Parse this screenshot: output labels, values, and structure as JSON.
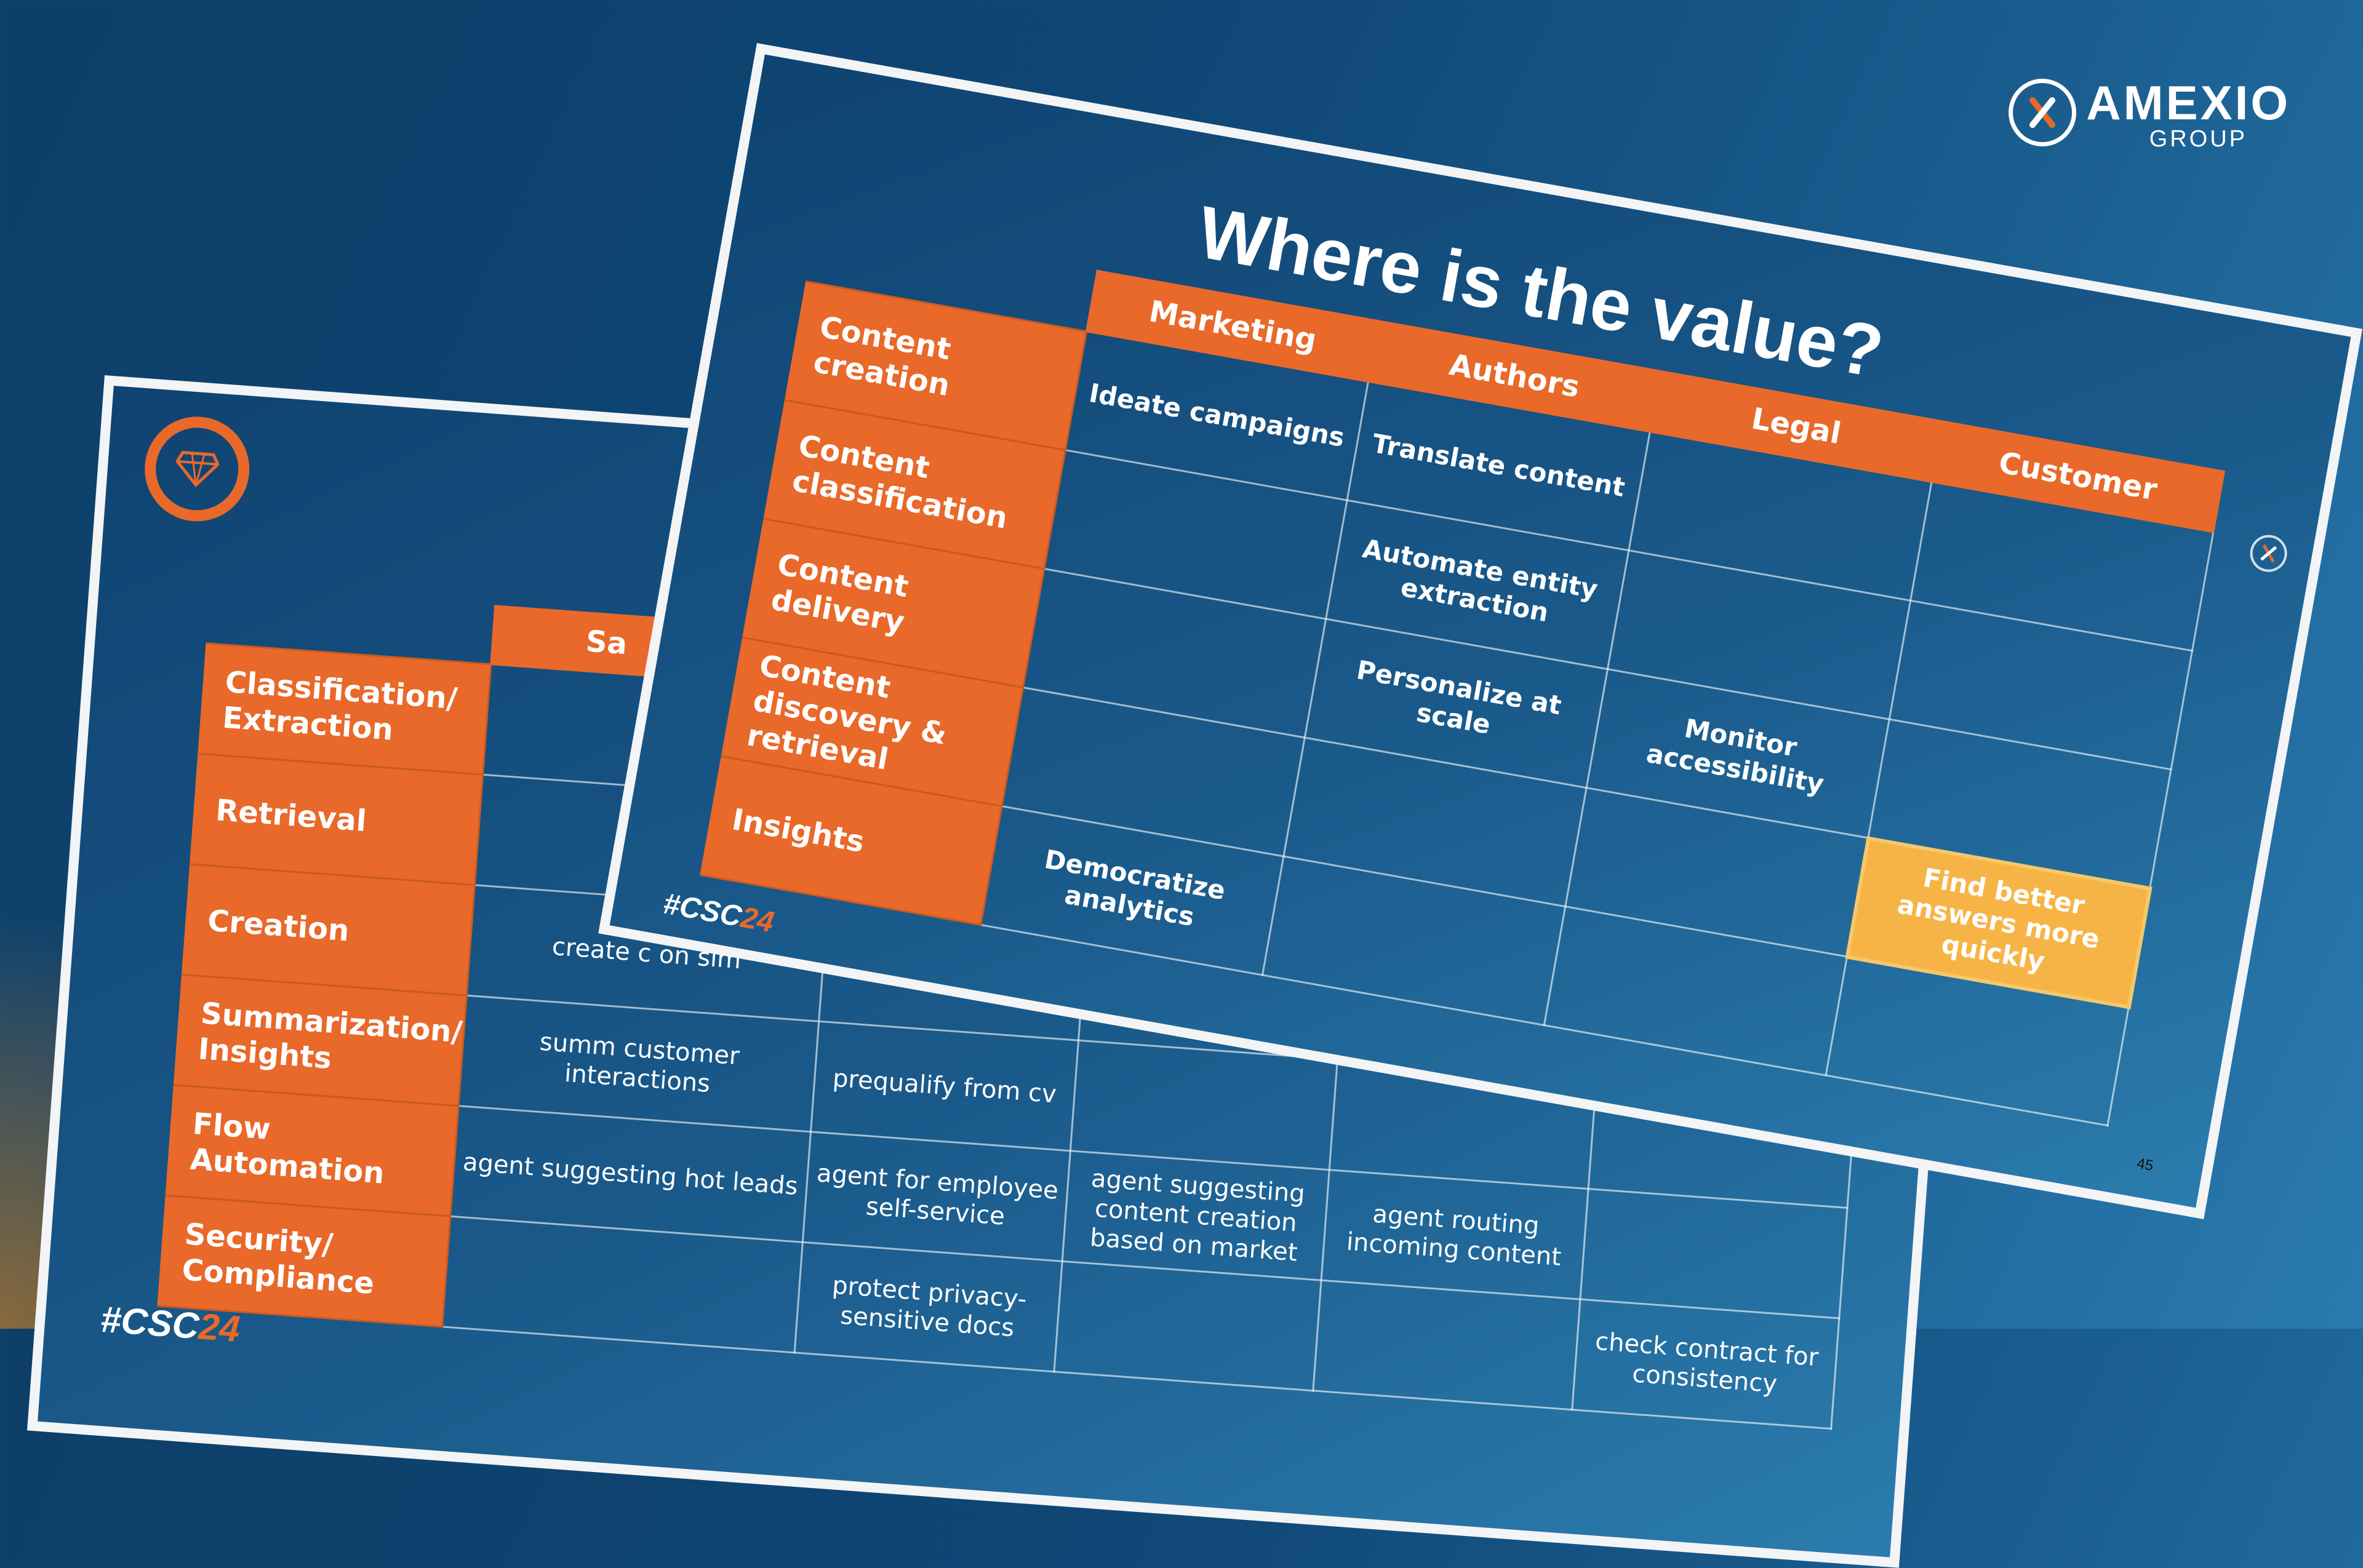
{
  "brand": {
    "name": "AMEXIO",
    "sub": "GROUP",
    "icon": "amexio-x-logo-icon"
  },
  "back_slide": {
    "icon": "diamond-icon",
    "hashtag_main": "#CSC",
    "hashtag_year": "24",
    "col_headers": [
      "Sa"
    ],
    "rows": [
      {
        "label": "Classification/ Extraction",
        "cells": [
          "",
          "",
          "",
          "",
          ""
        ]
      },
      {
        "label": "Retrieval",
        "cells": [
          "",
          "",
          "",
          "",
          ""
        ]
      },
      {
        "label": "Creation",
        "cells": [
          "create c on sim",
          "",
          "",
          "",
          ""
        ]
      },
      {
        "label": "Summarization/ Insights",
        "cells": [
          "summ customer interactions",
          "prequalify from cv",
          "",
          "",
          ""
        ]
      },
      {
        "label": "Flow Automation",
        "cells": [
          "agent suggesting hot leads",
          "agent for employee self-service",
          "agent suggesting content creation based on market",
          "agent routing incoming content",
          ""
        ]
      },
      {
        "label": "Security/ Compliance",
        "cells": [
          "",
          "protect privacy-sensitive docs",
          "",
          "",
          "check contract for consistency"
        ]
      }
    ]
  },
  "front_slide": {
    "title": "Where is the value?",
    "hashtag_main": "#CSC",
    "hashtag_year": "24",
    "page_number": "45",
    "close_icon": "amexio-x-icon",
    "col_headers": [
      "Marketing",
      "Authors",
      "Legal",
      "Customer"
    ],
    "rows": [
      {
        "label": "Content creation",
        "cells": [
          "Ideate campaigns",
          "Translate content",
          "",
          ""
        ]
      },
      {
        "label": "Content classification",
        "cells": [
          "",
          "Automate entity extraction",
          "",
          ""
        ]
      },
      {
        "label": "Content delivery",
        "cells": [
          "",
          "Personalize at scale",
          "Monitor accessibility",
          ""
        ]
      },
      {
        "label": "Content discovery & retrieval",
        "cells": [
          "",
          "",
          "",
          "Find better answers more quickly"
        ]
      },
      {
        "label": "Insights",
        "cells": [
          "Democratize analytics",
          "",
          "",
          ""
        ]
      }
    ],
    "highlight_color": "#f7b446"
  },
  "colors": {
    "accent": "#e8692a",
    "highlight": "#f7b446",
    "background": "#0f4675"
  }
}
